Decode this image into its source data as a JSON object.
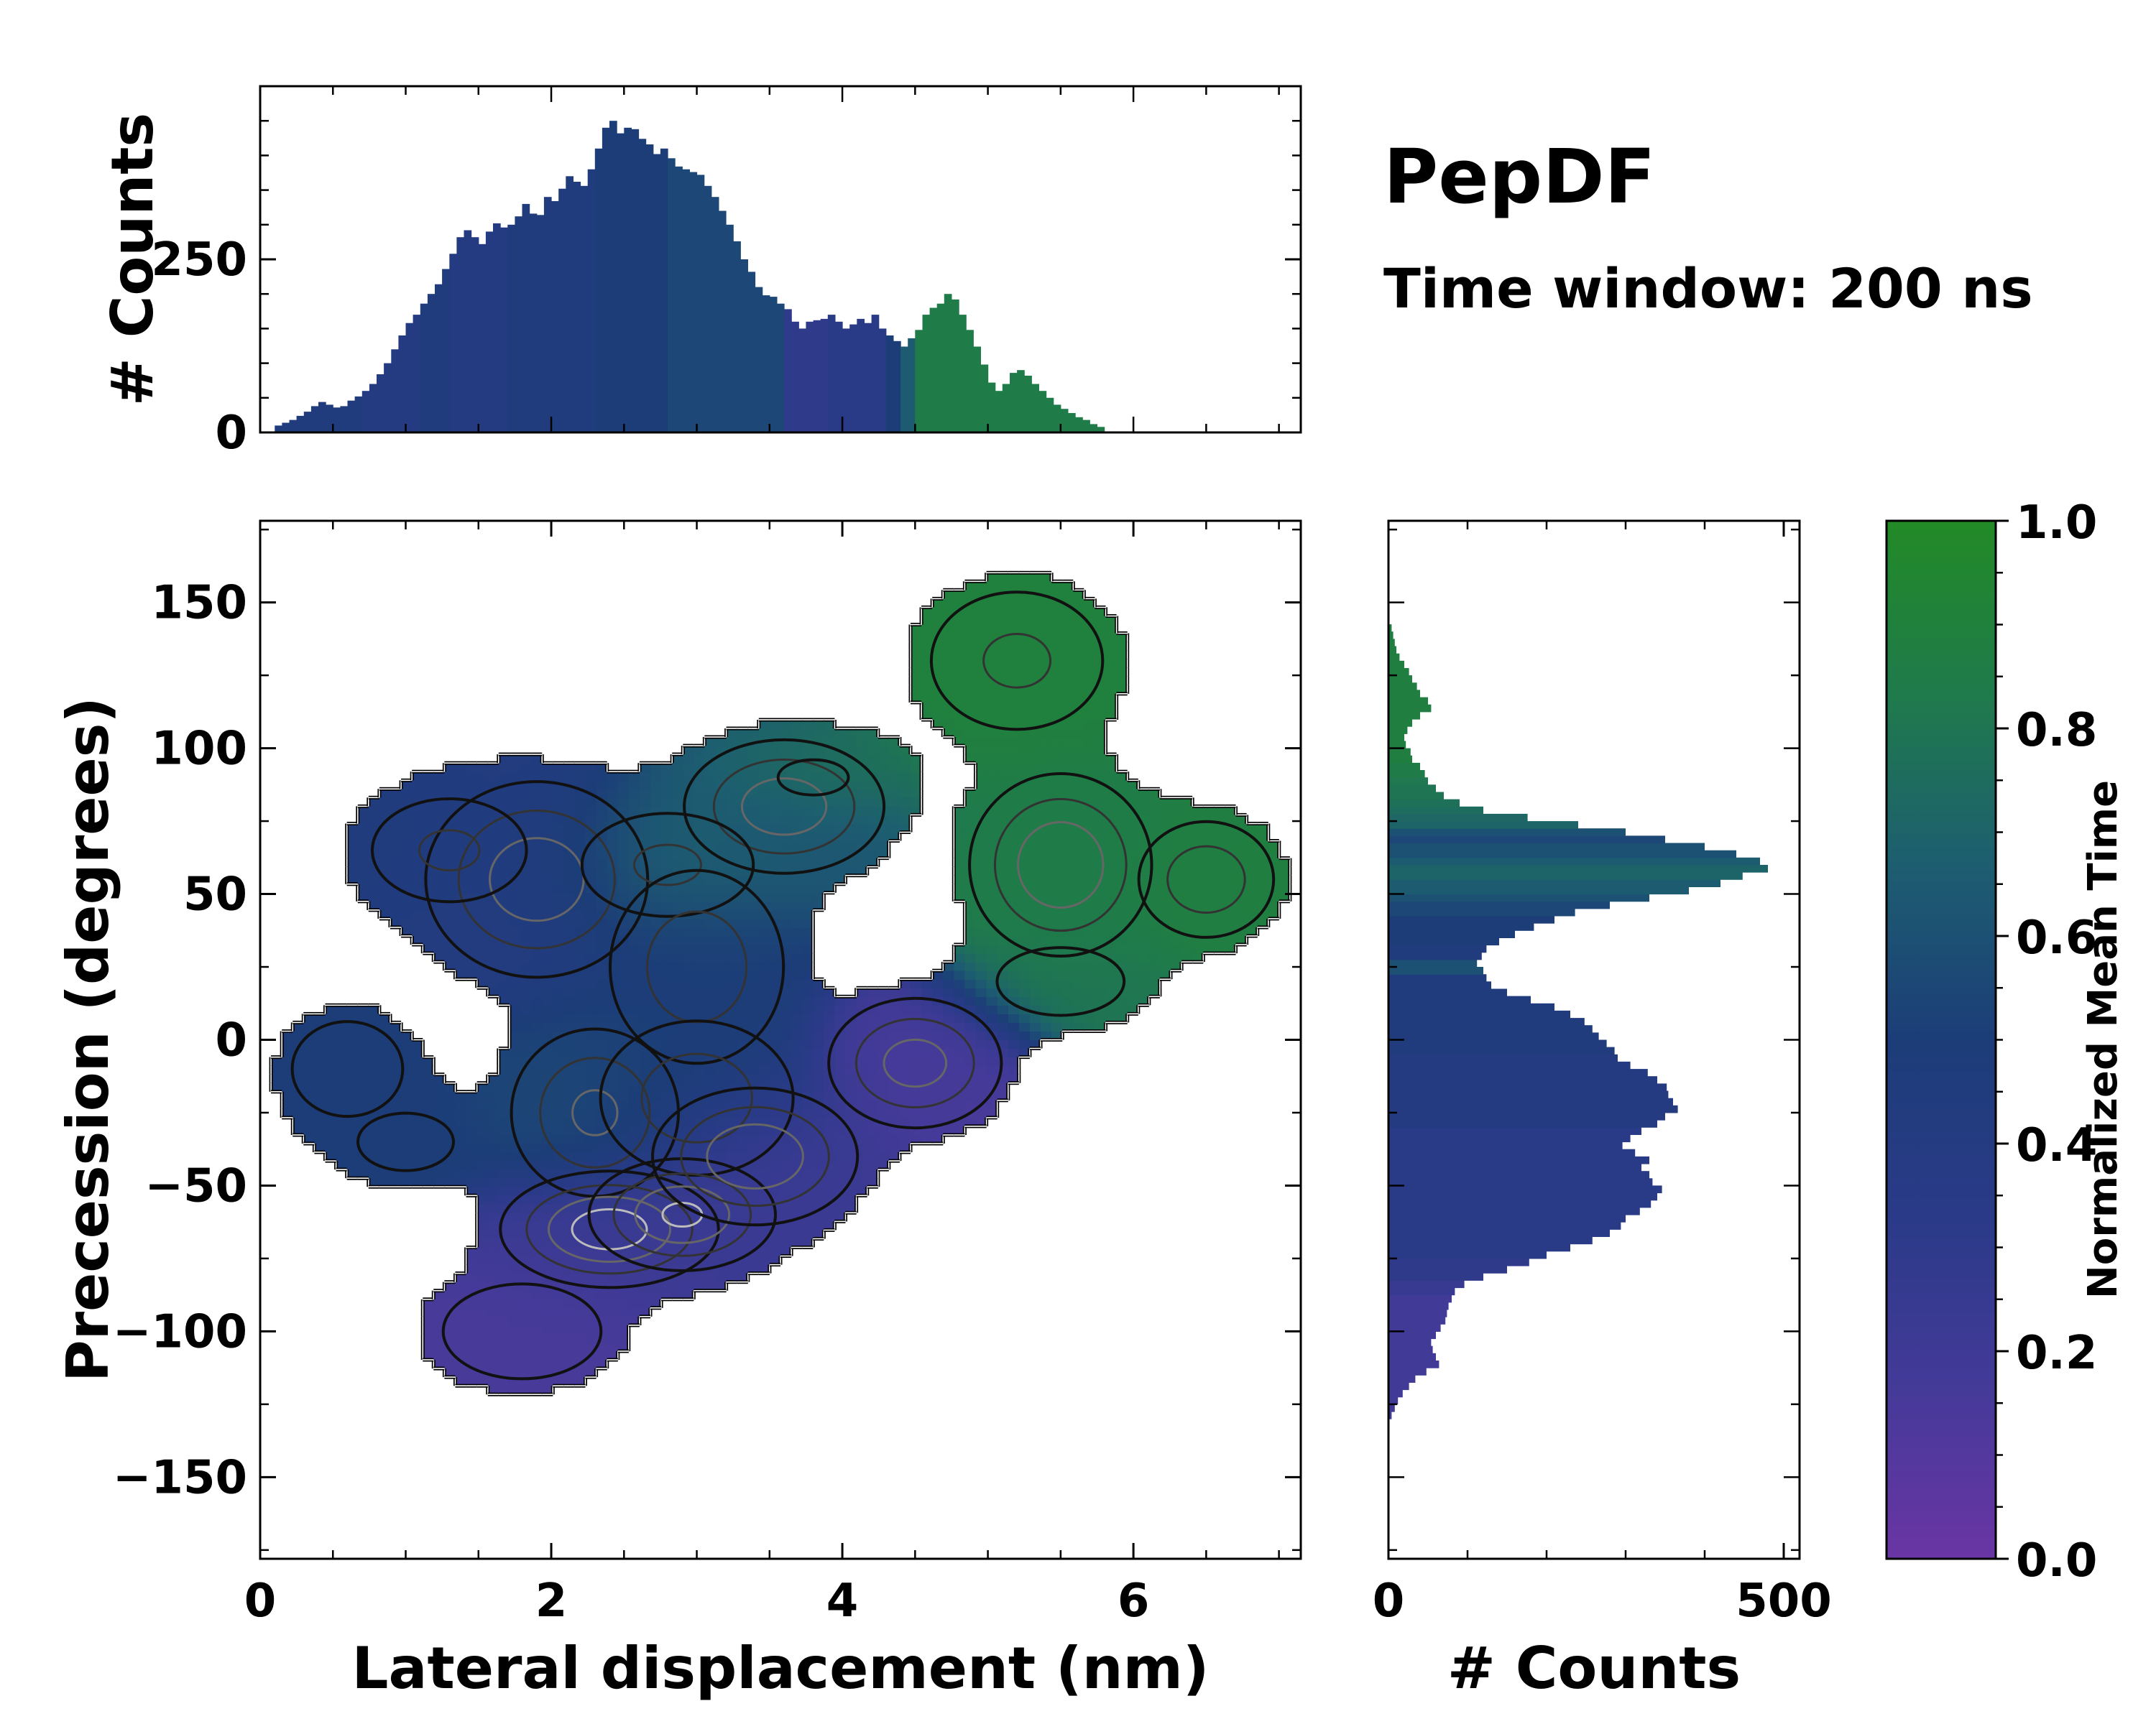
{
  "chart_data": {
    "type": "heatmap",
    "title": "PepDF",
    "subtitle": "Time window: 200 ns",
    "main": {
      "xlabel": "Lateral displacement (nm)",
      "ylabel": "Precession (degrees)",
      "xlim": [
        0,
        7.15
      ],
      "ylim": [
        -178,
        178
      ],
      "xticks": [
        0,
        2,
        4,
        6
      ],
      "xtick_labels": [
        "0",
        "2",
        "4",
        "6"
      ],
      "yticks": [
        -150,
        -100,
        -50,
        0,
        50,
        100,
        150
      ],
      "ytick_labels": [
        "−150",
        "−100",
        "−50",
        "0",
        "50",
        "100",
        "150"
      ],
      "clusters": [
        {
          "x": 1.9,
          "y": 55,
          "sx": 0.5,
          "sy": 22,
          "w": 0.8,
          "t": 0.42
        },
        {
          "x": 1.3,
          "y": 65,
          "sx": 0.45,
          "sy": 15,
          "w": 0.5,
          "t": 0.45
        },
        {
          "x": 0.6,
          "y": -10,
          "sx": 0.35,
          "sy": 15,
          "w": 0.45,
          "t": 0.5
        },
        {
          "x": 1.0,
          "y": -35,
          "sx": 0.4,
          "sy": 12,
          "w": 0.35,
          "t": 0.5
        },
        {
          "x": 3.6,
          "y": 80,
          "sx": 0.45,
          "sy": 15,
          "w": 0.8,
          "t": 0.62
        },
        {
          "x": 2.8,
          "y": 60,
          "sx": 0.5,
          "sy": 15,
          "w": 0.5,
          "t": 0.75
        },
        {
          "x": 3.0,
          "y": 25,
          "sx": 0.45,
          "sy": 25,
          "w": 0.6,
          "t": 0.5
        },
        {
          "x": 2.3,
          "y": -25,
          "sx": 0.4,
          "sy": 20,
          "w": 0.7,
          "t": 0.55
        },
        {
          "x": 3.0,
          "y": -20,
          "sx": 0.5,
          "sy": 20,
          "w": 0.6,
          "t": 0.5
        },
        {
          "x": 2.4,
          "y": -65,
          "sx": 0.45,
          "sy": 12,
          "w": 1.0,
          "t": 0.2
        },
        {
          "x": 2.9,
          "y": -60,
          "sx": 0.4,
          "sy": 12,
          "w": 0.9,
          "t": 0.22
        },
        {
          "x": 3.4,
          "y": -40,
          "sx": 0.45,
          "sy": 15,
          "w": 0.85,
          "t": 0.2
        },
        {
          "x": 1.8,
          "y": -100,
          "sx": 0.5,
          "sy": 15,
          "w": 0.45,
          "t": 0.15
        },
        {
          "x": 4.5,
          "y": -8,
          "sx": 0.4,
          "sy": 15,
          "w": 0.75,
          "t": 0.15
        },
        {
          "x": 5.5,
          "y": 60,
          "sx": 0.4,
          "sy": 20,
          "w": 0.85,
          "t": 0.85
        },
        {
          "x": 6.5,
          "y": 55,
          "sx": 0.35,
          "sy": 15,
          "w": 0.6,
          "t": 0.88
        },
        {
          "x": 5.2,
          "y": 130,
          "sx": 0.5,
          "sy": 20,
          "w": 0.5,
          "t": 0.9
        },
        {
          "x": 5.5,
          "y": 20,
          "sx": 0.45,
          "sy": 12,
          "w": 0.4,
          "t": 0.8
        },
        {
          "x": 3.8,
          "y": 90,
          "sx": 0.4,
          "sy": 10,
          "w": 0.3,
          "t": 0.93
        }
      ]
    },
    "top_histogram": {
      "ylabel": "# Counts",
      "ylim": [
        0,
        500
      ],
      "yticks": [
        0,
        250
      ],
      "ytick_labels": [
        "0",
        "250"
      ],
      "bin_width": 0.05,
      "x_start": 0.1,
      "values": [
        10,
        14,
        18,
        24,
        30,
        38,
        44,
        40,
        36,
        38,
        46,
        52,
        60,
        70,
        84,
        100,
        120,
        140,
        158,
        170,
        186,
        200,
        214,
        236,
        258,
        282,
        292,
        282,
        272,
        290,
        302,
        296,
        300,
        312,
        330,
        316,
        314,
        340,
        334,
        352,
        370,
        362,
        356,
        380,
        410,
        440,
        450,
        432,
        440,
        438,
        424,
        416,
        402,
        410,
        396,
        384,
        380,
        376,
        372,
        356,
        340,
        320,
        300,
        276,
        250,
        232,
        210,
        198,
        196,
        186,
        178,
        160,
        150,
        160,
        162,
        164,
        170,
        160,
        150,
        156,
        164,
        158,
        170,
        150,
        140,
        132,
        124,
        136,
        148,
        170,
        180,
        186,
        200,
        192,
        170,
        148,
        124,
        98,
        72,
        60,
        70,
        86,
        90,
        82,
        70,
        60,
        50,
        40,
        34,
        28,
        22,
        18,
        12,
        8
      ],
      "time": [
        0.45,
        0.45,
        0.45,
        0.45,
        0.45,
        0.45,
        0.45,
        0.45,
        0.45,
        0.45,
        0.45,
        0.45,
        0.4,
        0.4,
        0.4,
        0.4,
        0.4,
        0.4,
        0.4,
        0.4,
        0.45,
        0.45,
        0.45,
        0.45,
        0.4,
        0.4,
        0.4,
        0.4,
        0.4,
        0.4,
        0.4,
        0.4,
        0.45,
        0.45,
        0.45,
        0.45,
        0.45,
        0.45,
        0.45,
        0.45,
        0.45,
        0.45,
        0.45,
        0.45,
        0.5,
        0.5,
        0.5,
        0.5,
        0.5,
        0.5,
        0.5,
        0.5,
        0.5,
        0.5,
        0.55,
        0.55,
        0.55,
        0.55,
        0.55,
        0.55,
        0.55,
        0.55,
        0.55,
        0.55,
        0.55,
        0.55,
        0.55,
        0.55,
        0.55,
        0.55,
        0.3,
        0.3,
        0.3,
        0.3,
        0.3,
        0.3,
        0.35,
        0.35,
        0.35,
        0.35,
        0.35,
        0.35,
        0.35,
        0.35,
        0.5,
        0.5,
        0.65,
        0.65,
        0.85,
        0.85,
        0.85,
        0.85,
        0.85,
        0.85,
        0.85,
        0.85,
        0.85,
        0.85,
        0.85,
        0.85,
        0.85,
        0.85,
        0.85,
        0.85,
        0.85,
        0.85,
        0.85,
        0.85,
        0.85,
        0.85,
        0.85,
        0.85,
        0.85,
        0.85
      ]
    },
    "right_histogram": {
      "xlabel": "# Counts",
      "xlim": [
        0,
        520
      ],
      "xticks": [
        0,
        500
      ],
      "xtick_labels": [
        "0",
        "500"
      ],
      "bin_width": 2.5,
      "y_start": -130,
      "values": [
        4,
        8,
        12,
        18,
        26,
        34,
        48,
        64,
        60,
        56,
        54,
        60,
        66,
        72,
        74,
        76,
        80,
        84,
        96,
        120,
        150,
        178,
        200,
        230,
        258,
        280,
        294,
        300,
        318,
        332,
        340,
        346,
        334,
        330,
        320,
        330,
        312,
        296,
        306,
        320,
        340,
        350,
        366,
        360,
        354,
        352,
        340,
        328,
        306,
        290,
        286,
        276,
        266,
        258,
        248,
        230,
        210,
        180,
        150,
        130,
        124,
        120,
        112,
        118,
        124,
        140,
        160,
        184,
        210,
        236,
        280,
        330,
        380,
        420,
        448,
        480,
        470,
        440,
        400,
        350,
        300,
        240,
        176,
        120,
        90,
        70,
        60,
        50,
        46,
        40,
        30,
        28,
        22,
        20,
        24,
        30,
        40,
        54,
        50,
        40,
        36,
        30,
        26,
        20,
        14,
        10,
        8,
        6,
        4
      ],
      "time": [
        0.18,
        0.18,
        0.18,
        0.18,
        0.18,
        0.18,
        0.18,
        0.18,
        0.18,
        0.18,
        0.18,
        0.18,
        0.18,
        0.18,
        0.18,
        0.18,
        0.18,
        0.25,
        0.25,
        0.3,
        0.3,
        0.3,
        0.35,
        0.35,
        0.35,
        0.35,
        0.35,
        0.35,
        0.35,
        0.35,
        0.35,
        0.35,
        0.35,
        0.35,
        0.35,
        0.35,
        0.35,
        0.35,
        0.35,
        0.35,
        0.4,
        0.4,
        0.4,
        0.4,
        0.4,
        0.4,
        0.4,
        0.4,
        0.4,
        0.4,
        0.45,
        0.45,
        0.45,
        0.45,
        0.45,
        0.45,
        0.45,
        0.45,
        0.45,
        0.45,
        0.45,
        0.6,
        0.6,
        0.45,
        0.45,
        0.5,
        0.5,
        0.5,
        0.5,
        0.55,
        0.55,
        0.6,
        0.65,
        0.65,
        0.7,
        0.7,
        0.65,
        0.6,
        0.6,
        0.55,
        0.6,
        0.7,
        0.72,
        0.75,
        0.78,
        0.8,
        0.8,
        0.82,
        0.85,
        0.85,
        0.88,
        0.88,
        0.88,
        0.88,
        0.88,
        0.88,
        0.88,
        0.88,
        0.88,
        0.88,
        0.88,
        0.88,
        0.88,
        0.88,
        0.88,
        0.88,
        0.88,
        0.88,
        0.88
      ]
    },
    "colorbar": {
      "label": "Normalized Mean Time",
      "range": [
        0,
        1
      ],
      "ticks": [
        0,
        0.2,
        0.4,
        0.6,
        0.8,
        1.0
      ],
      "tick_labels": [
        "0.0",
        "0.2",
        "0.4",
        "0.6",
        "0.8",
        "1.0"
      ],
      "colors": [
        "#6a35a4",
        "#433a98",
        "#2a3a88",
        "#1c3d78",
        "#1d5e70",
        "#1f7a4c",
        "#228a26"
      ]
    }
  }
}
